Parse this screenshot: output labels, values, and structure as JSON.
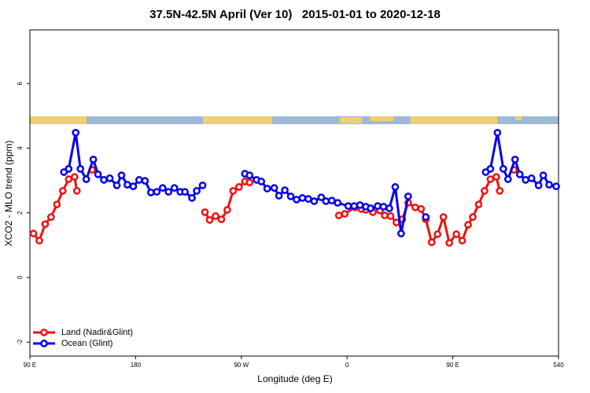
{
  "chart_data": {
    "type": "line",
    "title": "37.5N-42.5N April (Ver 10)   2015-01-01 to 2020-12-18",
    "x_label": "Longitude (deg E)",
    "y_label": "XCO2 - MLO trend (ppm)",
    "xlim": [
      90,
      540
    ],
    "ylim": [
      -2.43,
      7.66
    ],
    "xticks": [
      {
        "value": 90,
        "label": "90 E"
      },
      180,
      {
        "value": 270,
        "label": "90 W"
      },
      {
        "value": 360,
        "label": "0"
      },
      {
        "value": 450,
        "label": "90 E"
      },
      540
    ],
    "yticks": [
      -2,
      0,
      2,
      4,
      6
    ],
    "legend": "bottom-left",
    "series": [
      {
        "name": "Land (Nadir&Glint)",
        "color": "#ee1111",
        "x": [
          93,
          98,
          103,
          108,
          113,
          118,
          123,
          128,
          130,
          137,
          143,
          200,
          239,
          243,
          248,
          253,
          258,
          263,
          268,
          273,
          277,
          300,
          353,
          358,
          367,
          372,
          376,
          382,
          388,
          392,
          397,
          402,
          407,
          412,
          418,
          423,
          427,
          432,
          437,
          442,
          447,
          453,
          458,
          463,
          467,
          472,
          477,
          482,
          487,
          490,
          495,
          502
        ],
        "values": [
          1.36,
          1.14,
          1.65,
          1.87,
          2.26,
          2.68,
          3.04,
          3.11,
          2.68,
          null,
          3.33,
          null,
          2.02,
          1.78,
          1.9,
          1.8,
          2.09,
          2.68,
          2.8,
          2.97,
          2.94,
          null,
          1.92,
          1.97,
          2.17,
          2.12,
          2.09,
          2.02,
          2.07,
          1.92,
          1.9,
          1.7,
          1.8,
          2.31,
          2.17,
          2.12,
          1.8,
          1.09,
          1.34,
          1.87,
          1.07,
          1.34,
          1.14,
          1.63,
          1.87,
          2.26,
          2.68,
          3.04,
          3.11,
          2.68,
          null,
          3.33
        ]
      },
      {
        "name": "Ocean (Glint)",
        "color": "#0000ee",
        "x": [
          119,
          123,
          129,
          133,
          138,
          144,
          148,
          153,
          158,
          164,
          168,
          173,
          178,
          183,
          188,
          193,
          198,
          203,
          208,
          213,
          218,
          222,
          228,
          232,
          237,
          270,
          273,
          277,
          283,
          287,
          292,
          298,
          302,
          307,
          312,
          317,
          322,
          327,
          332,
          338,
          342,
          347,
          352,
          361,
          366,
          371,
          376,
          380,
          386,
          391,
          396,
          401,
          406,
          412,
          417,
          427,
          432,
          478,
          482,
          488,
          493,
          497,
          503,
          507,
          512,
          517,
          523,
          527,
          532,
          538
        ],
        "values": [
          3.26,
          3.36,
          4.48,
          3.36,
          3.04,
          3.65,
          3.19,
          3.02,
          3.07,
          2.85,
          3.16,
          2.87,
          2.82,
          3.02,
          2.99,
          2.63,
          2.65,
          2.77,
          2.65,
          2.77,
          2.65,
          2.65,
          2.46,
          2.68,
          2.85,
          null,
          3.21,
          3.16,
          3.02,
          2.97,
          2.75,
          2.77,
          2.53,
          2.7,
          2.51,
          2.41,
          2.46,
          2.43,
          2.36,
          2.48,
          2.36,
          2.38,
          2.31,
          2.21,
          2.21,
          2.24,
          2.19,
          2.14,
          2.21,
          2.19,
          2.14,
          2.8,
          1.36,
          2.51,
          null,
          1.87,
          null,
          3.26,
          3.36,
          4.48,
          3.36,
          3.04,
          3.65,
          3.19,
          3.02,
          3.07,
          2.85,
          3.16,
          2.87,
          2.82
        ]
      }
    ]
  }
}
